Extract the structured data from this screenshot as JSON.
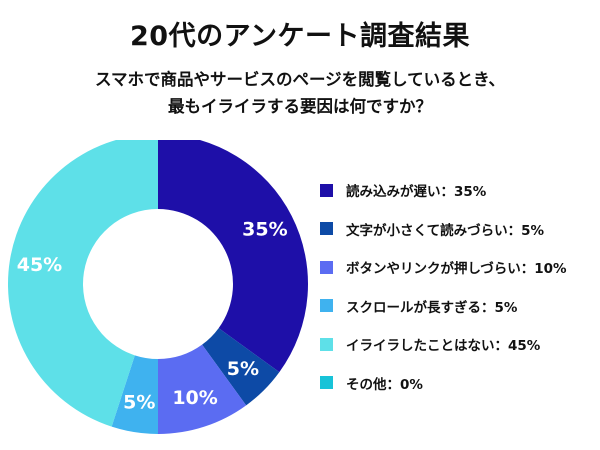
{
  "title": "20代のアンケート調査結果",
  "subtitle": [
    "スマホで商品やサービスのページを閲覧しているとき、",
    "最もイライラする要因は何ですか？"
  ],
  "chart_data": {
    "type": "pie",
    "donut": true,
    "legend_position": "right",
    "slices": [
      {
        "label": "読み込みが遅い",
        "value": 35,
        "color": "#1e0fa8",
        "legend_text": "読み込みが遅い：35%",
        "data_label": "35%"
      },
      {
        "label": "文字が小さくて読みづらい",
        "value": 5,
        "color": "#0d4aa6",
        "legend_text": "文字が小さくて読みづらい：5%",
        "data_label": "5%"
      },
      {
        "label": "ボタンやリンクが押しづらい",
        "value": 10,
        "color": "#5b6cf2",
        "legend_text": "ボタンやリンクが押しづらい：10%",
        "data_label": "10%"
      },
      {
        "label": "スクロールが長すぎる",
        "value": 5,
        "color": "#3fb2ef",
        "legend_text": "スクロールが長すぎる：5%",
        "data_label": "5%"
      },
      {
        "label": "イライラしたことはない",
        "value": 45,
        "color": "#5ee0e8",
        "legend_text": "イライラしたことはない：45%",
        "data_label": "45%"
      },
      {
        "label": "その他",
        "value": 0,
        "color": "#17c3d8",
        "legend_text": "その他：0%",
        "data_label": ""
      }
    ]
  }
}
